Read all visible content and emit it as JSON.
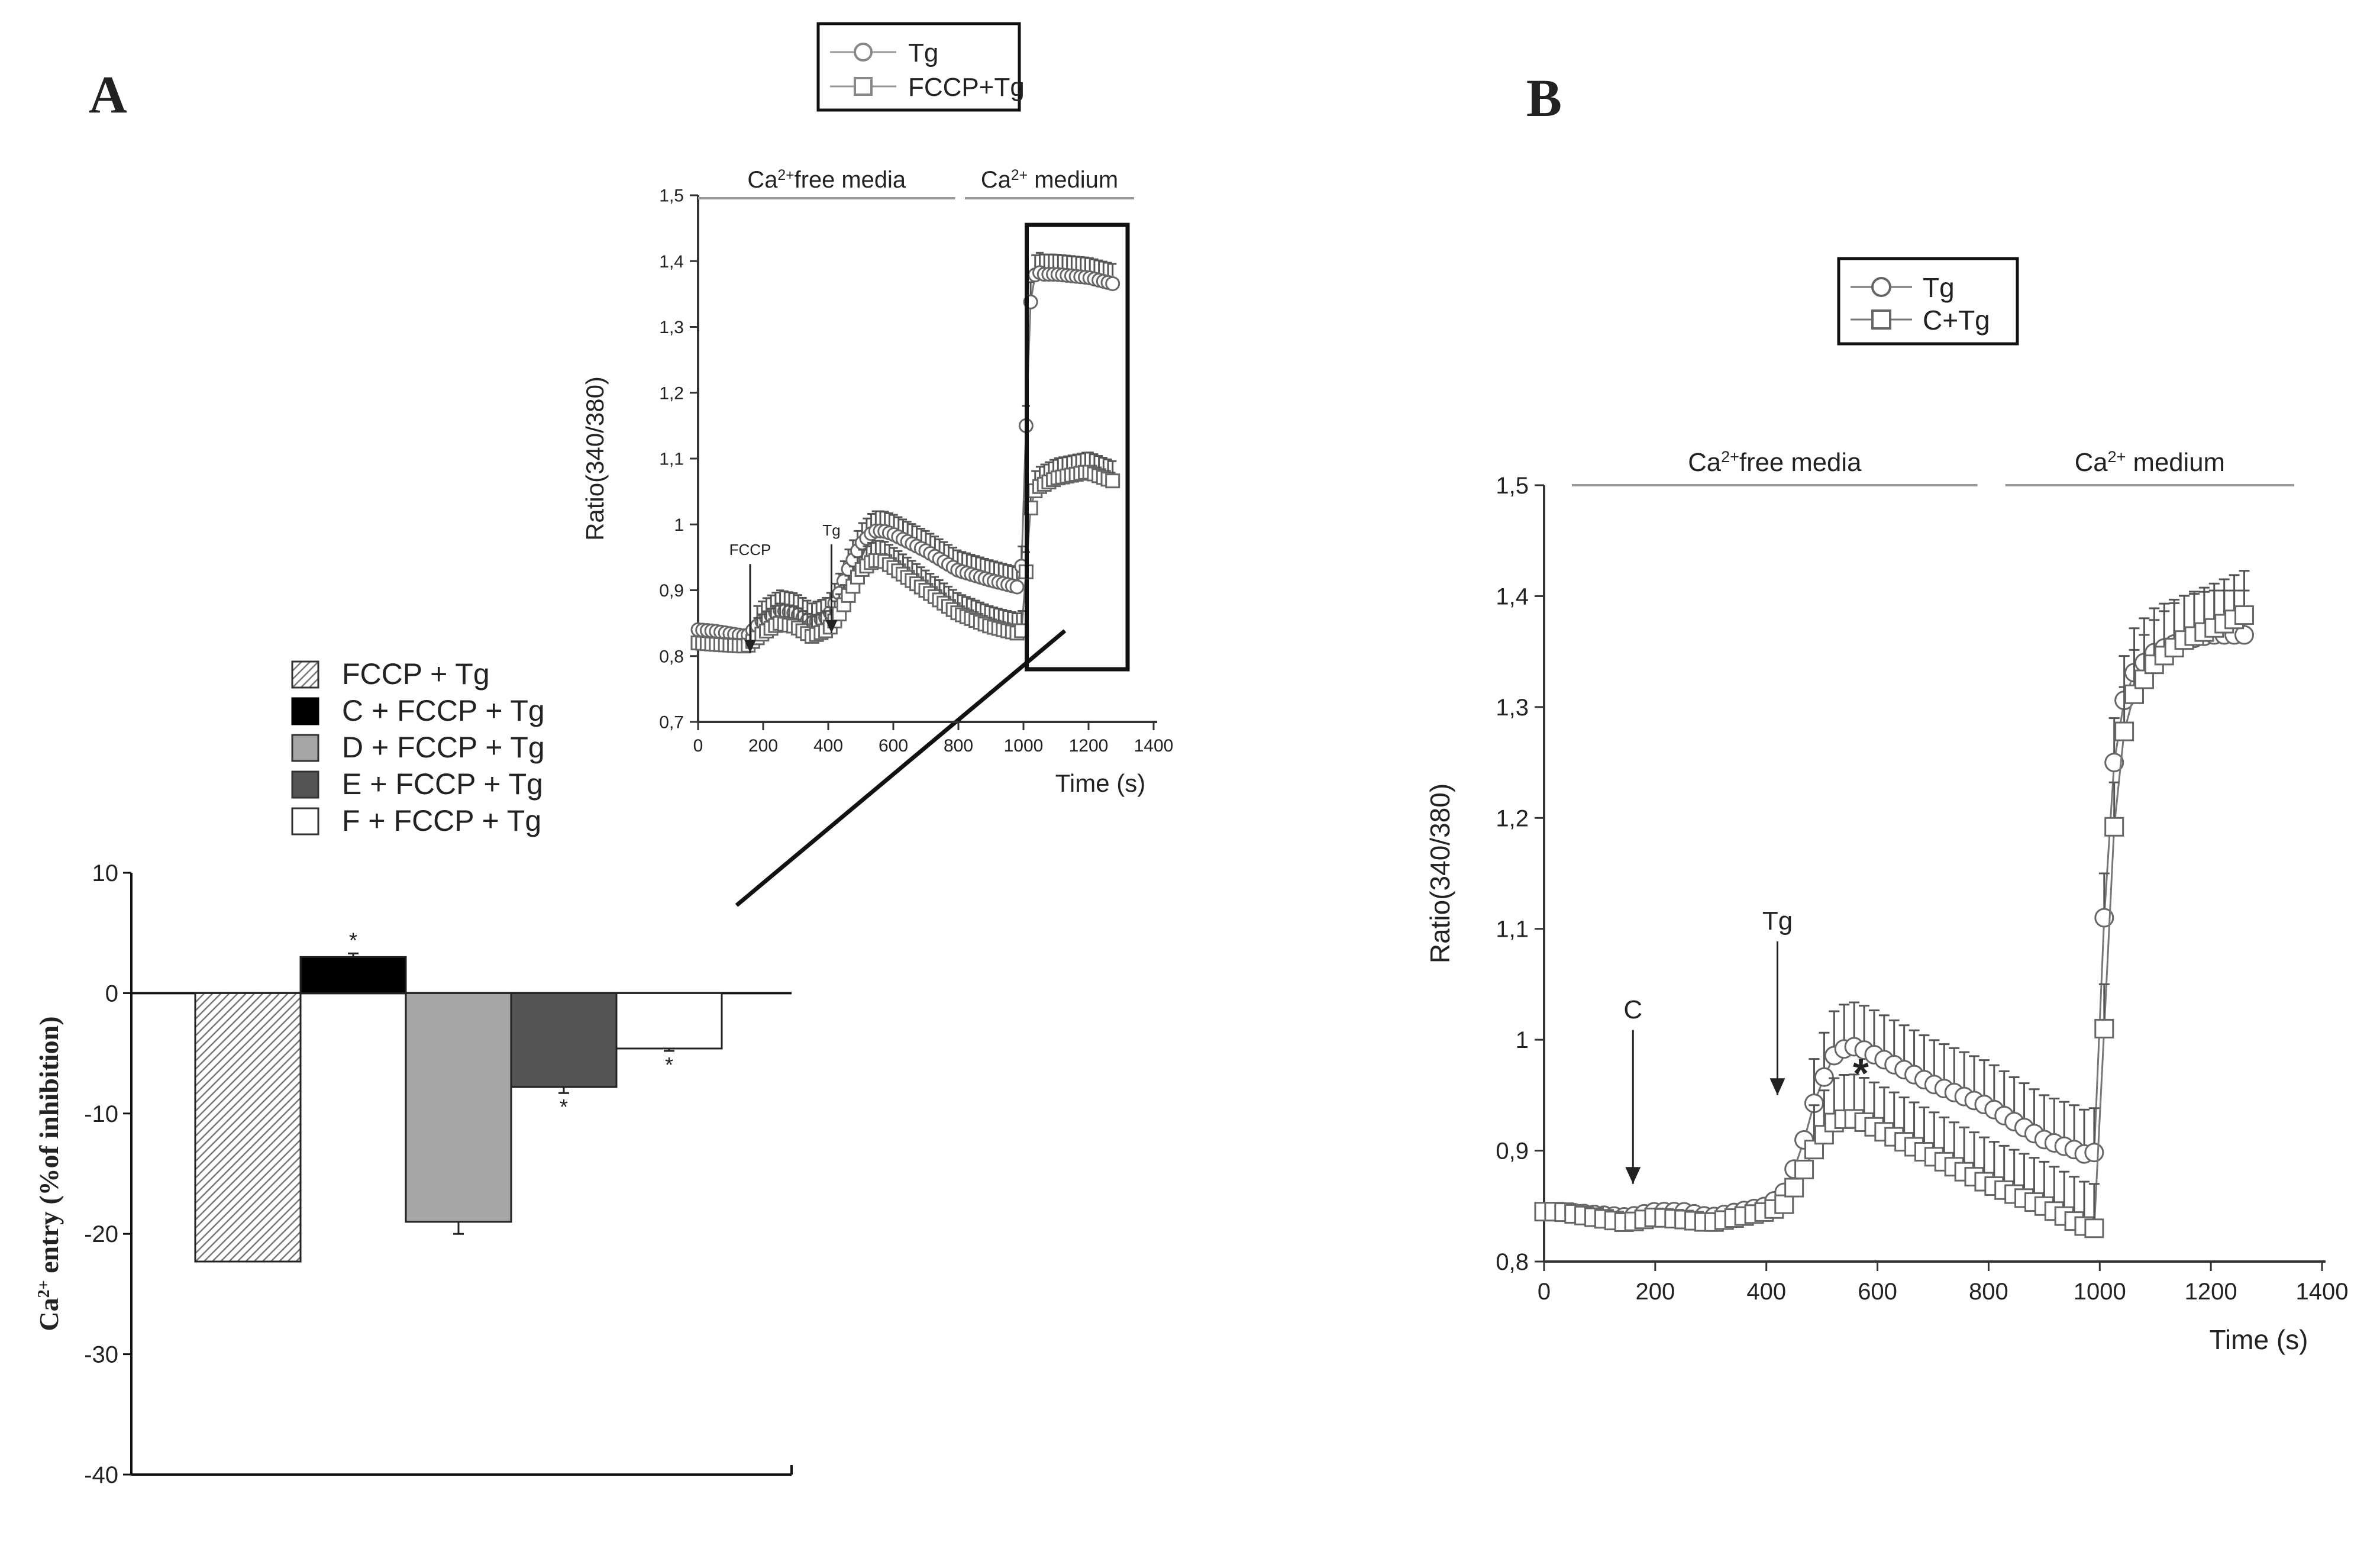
{
  "panel_labels": {
    "a": "A",
    "b": "B"
  },
  "chart_data": [
    {
      "id": "inset",
      "type": "line",
      "panel": "A",
      "title": "",
      "xlabel": "Time (s)",
      "ylabel": "Ratio(340/380)",
      "xlim": [
        0,
        1400
      ],
      "ylim": [
        0.7,
        1.5
      ],
      "xticks": [
        0,
        200,
        400,
        600,
        800,
        1000,
        1200,
        1400
      ],
      "yticks": [
        0.7,
        0.8,
        0.9,
        1.0,
        1.1,
        1.2,
        1.3,
        1.4,
        1.5
      ],
      "ytick_labels": [
        "0,7",
        "0,8",
        "0,9",
        "1",
        "1,1",
        "1,2",
        "1,3",
        "1,4",
        "1,5"
      ],
      "periods": [
        {
          "label": "Ca",
          "sup": "2+",
          "rest": "free media",
          "x_start": 0,
          "x_end": 790
        },
        {
          "label": "Ca",
          "sup": "2+",
          "rest": " medium",
          "x_start": 820,
          "x_end": 1340
        }
      ],
      "annotations": [
        {
          "text": "FCCP",
          "x": 160,
          "y_tip": 0.805
        },
        {
          "text": "Tg",
          "x": 410,
          "y_tip": 0.835
        }
      ],
      "legend": [
        "Tg",
        "FCCP+Tg"
      ],
      "highlight_box": {
        "x_range": [
          1010,
          1320
        ],
        "y_range": [
          0.78,
          1.455
        ]
      },
      "series": [
        {
          "name": "Tg",
          "marker": "circle",
          "x": [
            0,
            50,
            150,
            200,
            250,
            300,
            350,
            400,
            430,
            460,
            500,
            540,
            570,
            600,
            700,
            800,
            900,
            980,
            1000,
            1010,
            1020,
            1030,
            1040,
            1060,
            1100,
            1200,
            1280
          ],
          "y": [
            0.84,
            0.838,
            0.83,
            0.855,
            0.87,
            0.865,
            0.85,
            0.86,
            0.89,
            0.93,
            0.97,
            0.99,
            0.99,
            0.985,
            0.96,
            0.93,
            0.915,
            0.905,
            0.95,
            1.2,
            1.33,
            1.37,
            1.385,
            1.38,
            1.38,
            1.375,
            1.365
          ]
        },
        {
          "name": "FCCP+Tg",
          "marker": "square",
          "x": [
            0,
            50,
            150,
            200,
            250,
            300,
            350,
            400,
            430,
            460,
            500,
            540,
            570,
            600,
            700,
            800,
            900,
            980,
            1000,
            1010,
            1020,
            1030,
            1040,
            1060,
            1100,
            1200,
            1280
          ],
          "y": [
            0.82,
            0.818,
            0.815,
            0.835,
            0.85,
            0.845,
            0.83,
            0.84,
            0.86,
            0.89,
            0.93,
            0.945,
            0.945,
            0.935,
            0.9,
            0.865,
            0.845,
            0.835,
            0.84,
            0.95,
            1.02,
            1.045,
            1.055,
            1.06,
            1.07,
            1.08,
            1.065
          ]
        }
      ]
    },
    {
      "id": "bar",
      "type": "bar",
      "panel": "A",
      "title": "",
      "xlabel": "",
      "ylabel": "Ca",
      "ylabel_sup": "2+",
      "ylabel_rest": " entry (%of inhibition)",
      "ylim": [
        -40,
        10
      ],
      "yticks": [
        10,
        0,
        -10,
        -20,
        -30,
        -40
      ],
      "ytick_labels": [
        "10",
        "0",
        "-10",
        "-20",
        "-30",
        "-40"
      ],
      "categories": [
        "FCCP + Tg",
        "C + FCCP + Tg",
        "D + FCCP + Tg",
        "E + FCCP + Tg",
        "F + FCCP + Tg"
      ],
      "values": [
        -22.3,
        3.0,
        -19.0,
        -7.8,
        -4.6
      ],
      "errors": [
        0.0,
        0.3,
        1.0,
        0.5,
        0.2
      ],
      "significance": [
        "",
        "*",
        "",
        "*",
        "*"
      ],
      "fills": [
        "hatch",
        "#000000",
        "#a6a6a6",
        "#555555",
        "#ffffff"
      ],
      "legend_position": "top"
    },
    {
      "id": "panelB",
      "type": "line",
      "panel": "B",
      "title": "",
      "xlabel": "Time (s)",
      "ylabel": "Ratio(340/380)",
      "xlim": [
        0,
        1400
      ],
      "ylim": [
        0.8,
        1.5
      ],
      "xticks": [
        0,
        200,
        400,
        600,
        800,
        1000,
        1200,
        1400
      ],
      "yticks": [
        0.8,
        0.9,
        1.0,
        1.1,
        1.2,
        1.3,
        1.4,
        1.5
      ],
      "ytick_labels": [
        "0,8",
        "0,9",
        "1",
        "1,1",
        "1,2",
        "1,3",
        "1,4",
        "1,5"
      ],
      "periods": [
        {
          "label": "Ca",
          "sup": "2+",
          "rest": "free media",
          "x_start": 50,
          "x_end": 780
        },
        {
          "label": "Ca",
          "sup": "2+",
          "rest": " medium",
          "x_start": 830,
          "x_end": 1350
        }
      ],
      "annotations": [
        {
          "text": "C",
          "x": 160,
          "y_tip": 0.87
        },
        {
          "text": "Tg",
          "x": 420,
          "y_tip": 0.95
        },
        {
          "text": "*",
          "x": 570,
          "y_tip": 0.97
        }
      ],
      "legend": [
        "Tg",
        "C+Tg"
      ],
      "series": [
        {
          "name": "Tg",
          "marker": "circle",
          "x": [
            0,
            30,
            150,
            200,
            250,
            300,
            350,
            400,
            430,
            460,
            490,
            520,
            550,
            580,
            620,
            700,
            800,
            900,
            960,
            980,
            995,
            1000,
            1005,
            1010,
            1020,
            1030,
            1040,
            1060,
            1100,
            1150,
            1200,
            1270
          ],
          "y": [
            0.845,
            0.845,
            0.84,
            0.845,
            0.845,
            0.84,
            0.845,
            0.85,
            0.86,
            0.895,
            0.95,
            0.985,
            0.995,
            0.99,
            0.98,
            0.96,
            0.94,
            0.91,
            0.9,
            0.895,
            0.9,
            0.93,
            1.05,
            1.15,
            1.22,
            1.27,
            1.3,
            1.33,
            1.35,
            1.36,
            1.365,
            1.365
          ]
        },
        {
          "name": "C+Tg",
          "marker": "square",
          "x": [
            0,
            30,
            150,
            200,
            250,
            300,
            350,
            400,
            430,
            460,
            490,
            520,
            550,
            580,
            620,
            700,
            800,
            900,
            960,
            980,
            995,
            1000,
            1005,
            1010,
            1020,
            1030,
            1040,
            1060,
            1100,
            1150,
            1200,
            1270
          ],
          "y": [
            0.845,
            0.845,
            0.835,
            0.84,
            0.838,
            0.835,
            0.84,
            0.845,
            0.85,
            0.875,
            0.905,
            0.925,
            0.93,
            0.925,
            0.915,
            0.895,
            0.87,
            0.85,
            0.835,
            0.83,
            0.83,
            0.86,
            0.95,
            1.05,
            1.15,
            1.22,
            1.27,
            1.31,
            1.34,
            1.36,
            1.37,
            1.385
          ]
        }
      ]
    }
  ]
}
